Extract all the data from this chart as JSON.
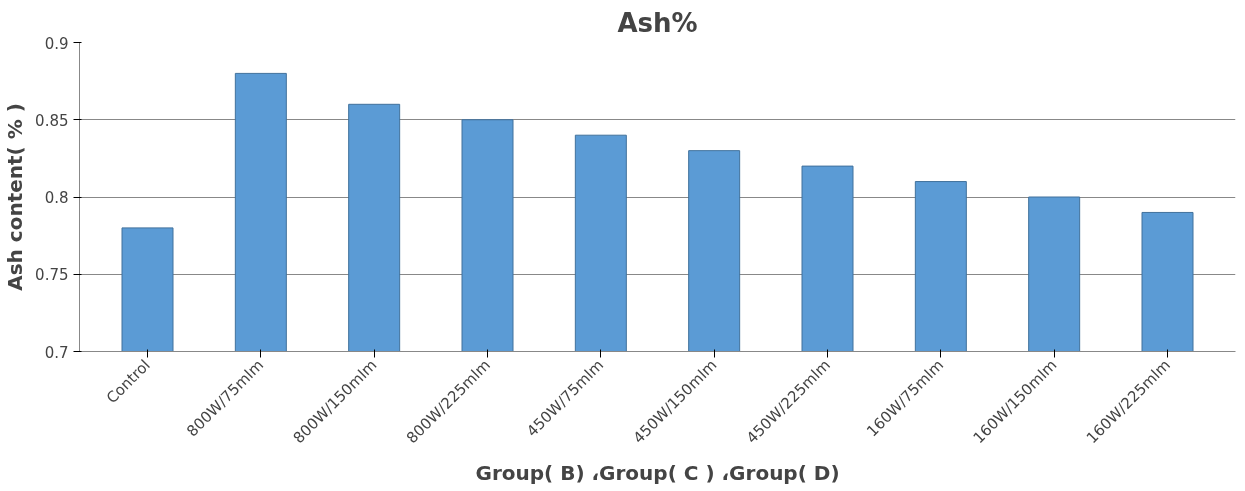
{
  "chart_data": {
    "type": "bar",
    "title": "Ash%",
    "xlabel": "Group( B) ،Group( C ) ،Group( D)",
    "ylabel": "Ash content( % )",
    "categories": [
      "Control",
      "800W/75mlm",
      "800W/150mlm",
      "800W/225mlm",
      "450W/75mlm",
      "450W/150mlm",
      "450W/225mlm",
      "160W/75mlm",
      "160W/150mlm",
      "160W/225mlm"
    ],
    "values": [
      0.78,
      0.88,
      0.86,
      0.85,
      0.84,
      0.83,
      0.82,
      0.81,
      0.8,
      0.79
    ],
    "color": "#5b9bd5",
    "ylim": [
      0.7,
      0.9
    ],
    "yticks": [
      0.7,
      0.75,
      0.8,
      0.85,
      0.9
    ],
    "grid": "y"
  }
}
